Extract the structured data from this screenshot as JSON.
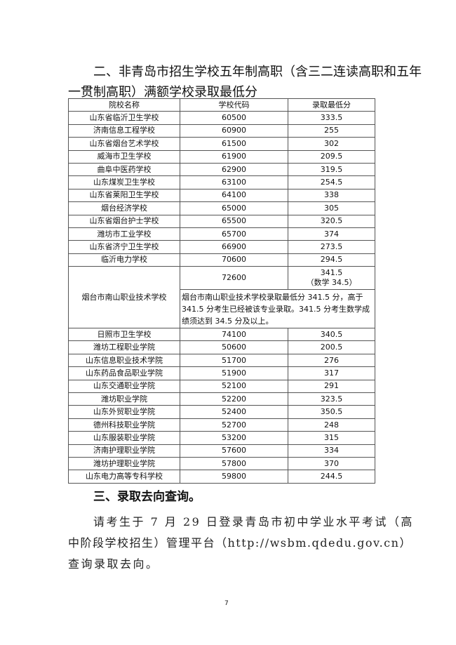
{
  "heading_line1": "二、非青岛市招生学校五年制高职（含三二连读高职和五年",
  "heading_line2": "一贯制高职）满额学校录取最低分",
  "table": {
    "headers": [
      "院校名称",
      "学校代码",
      "录取最低分"
    ],
    "rows_a": [
      [
        "山东省临沂卫生学校",
        "60500",
        "333.5"
      ],
      [
        "济南信息工程学校",
        "60900",
        "255"
      ],
      [
        "山东省烟台艺术学校",
        "61500",
        "302"
      ],
      [
        "威海市卫生学校",
        "61900",
        "209.5"
      ],
      [
        "曲阜中医药学校",
        "62900",
        "319.5"
      ],
      [
        "山东煤炭卫生学校",
        "63100",
        "254.5"
      ],
      [
        "山东省莱阳卫生学校",
        "64100",
        "338"
      ],
      [
        "烟台经济学校",
        "65000",
        "305"
      ],
      [
        "山东省烟台护士学校",
        "65500",
        "320.5"
      ],
      [
        "潍坊市工业学校",
        "65700",
        "374"
      ],
      [
        "山东省济宁卫生学校",
        "66900",
        "273.5"
      ],
      [
        "临沂电力学校",
        "70600",
        "294.5"
      ]
    ],
    "special": {
      "name": "烟台市南山职业技术学校",
      "code": "72600",
      "score": "341.5",
      "score_note": "（数学 34.5）",
      "note": "烟台市南山职业技术学校录取最低分 341.5 分，高于 341.5 分考生已经被该专业录取。341.5 分考生数学成绩须达到 34.5 分及以上。"
    },
    "rows_b": [
      [
        "日照市卫生学校",
        "74100",
        "340.5"
      ],
      [
        "潍坊工程职业学院",
        "50600",
        "200.5"
      ],
      [
        "山东信息职业技术学院",
        "51700",
        "276"
      ],
      [
        "山东药品食品职业学院",
        "51900",
        "317"
      ],
      [
        "山东交通职业学院",
        "52100",
        "291"
      ],
      [
        "潍坊职业学院",
        "52200",
        "323.5"
      ],
      [
        "山东外贸职业学院",
        "52400",
        "350.5"
      ],
      [
        "德州科技职业学院",
        "52700",
        "248"
      ],
      [
        "山东服装职业学院",
        "53200",
        "315"
      ],
      [
        "济南护理职业学院",
        "57600",
        "334"
      ],
      [
        "潍坊护理职业学院",
        "57800",
        "370"
      ],
      [
        "山东电力高等专科学校",
        "59800",
        "244.5"
      ]
    ]
  },
  "section3": "三、录取去向查询。",
  "para": [
    "请考生于 7 月 29 日登录青岛市初中学业水平考试（高",
    "中阶段学校招生）管理平台（http://wsbm.qdedu.gov.cn）",
    "查询录取去向。"
  ],
  "page_number": "7"
}
